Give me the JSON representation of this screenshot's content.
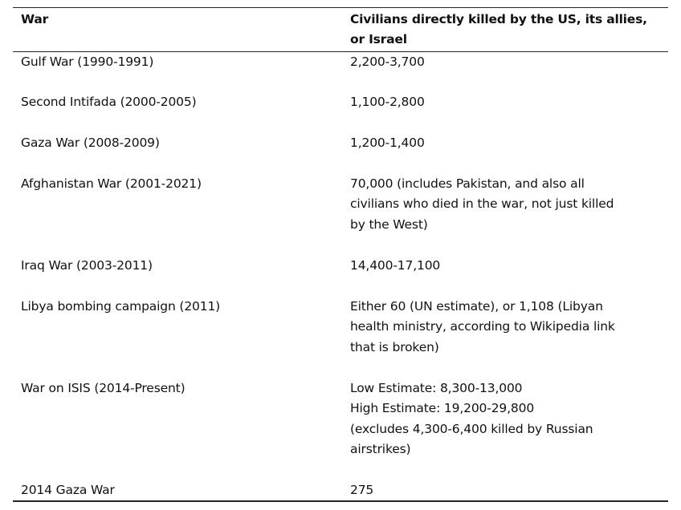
{
  "table": {
    "headers": {
      "war": "War",
      "civilians": [
        "Civilians directly killed by the US, its allies,",
        "or Israel"
      ]
    },
    "rows": [
      {
        "war": "Gulf War (1990-1991)",
        "civilians": [
          "2,200-3,700"
        ]
      },
      {
        "war": "Second Intifada (2000-2005)",
        "civilians": [
          "1,100-2,800"
        ]
      },
      {
        "war": "Gaza War (2008-2009)",
        "civilians": [
          "1,200-1,400"
        ]
      },
      {
        "war": "Afghanistan War (2001-2021)",
        "civilians": [
          "70,000 (includes Pakistan, and also all",
          "civilians who died in the war, not just killed",
          "by the West)"
        ]
      },
      {
        "war": "Iraq War (2003-2011)",
        "civilians": [
          "14,400-17,100"
        ]
      },
      {
        "war": "Libya bombing campaign (2011)",
        "civilians": [
          "Either 60 (UN estimate), or 1,108 (Libyan",
          "health ministry, according to Wikipedia link",
          "that is broken)"
        ]
      },
      {
        "war": "War on ISIS (2014-Present)",
        "civilians": [
          "Low Estimate: 8,300-13,000",
          "High Estimate: 19,200-29,800",
          "(excludes 4,300-6,400 killed by Russian",
          "airstrikes)"
        ]
      },
      {
        "war": "2014 Gaza War",
        "civilians": [
          "275"
        ]
      }
    ]
  }
}
